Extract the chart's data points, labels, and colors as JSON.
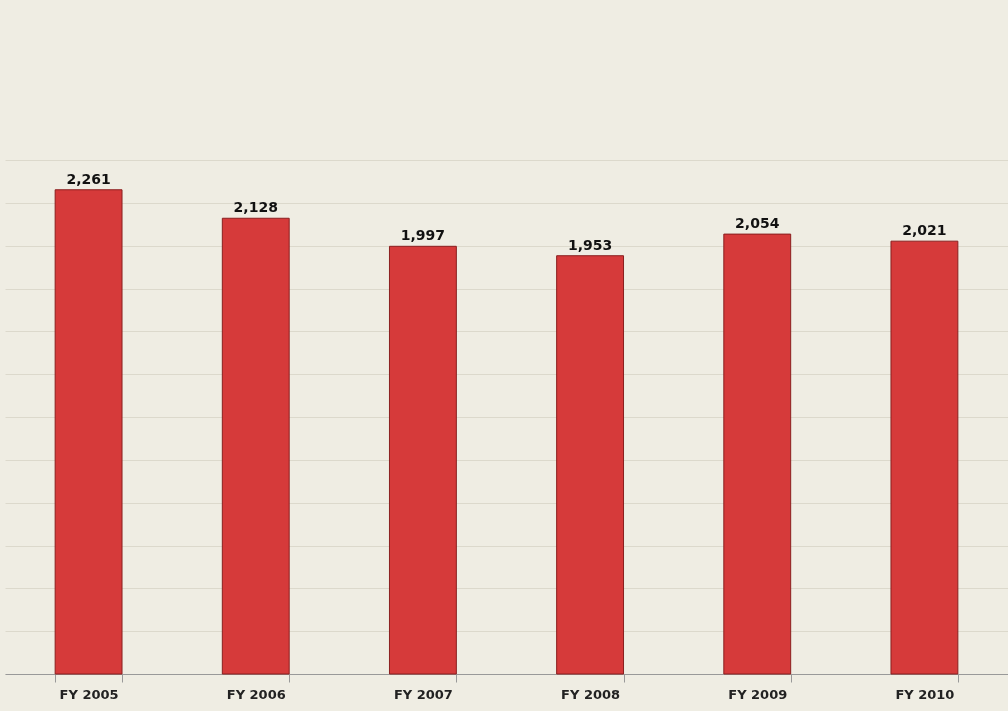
{
  "chart_data": {
    "type": "bar",
    "categories": [
      "FY 2005",
      "FY 2006",
      "FY 2007",
      "FY 2008",
      "FY 2009",
      "FY 2010"
    ],
    "values": [
      2261,
      2128,
      1997,
      1953,
      2054,
      2021
    ],
    "value_labels": [
      "2,261",
      "2,128",
      "1,997",
      "1,953",
      "2,054",
      "2,021"
    ],
    "color": "#d63a3a",
    "grid": "y",
    "tick_labels": "x"
  }
}
